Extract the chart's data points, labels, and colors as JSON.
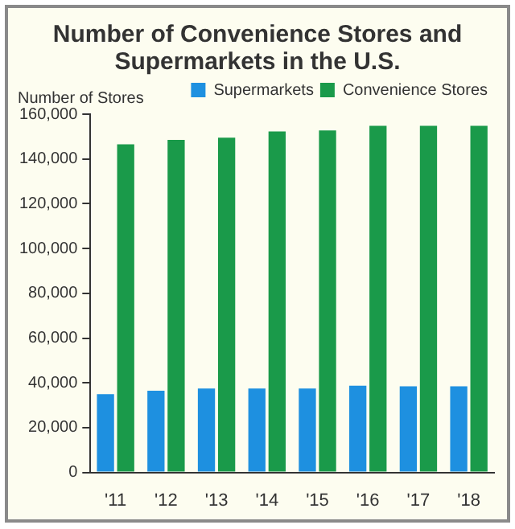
{
  "chart_data": {
    "type": "bar",
    "title": "Number of Convenience Stores and Supermarkets in the U.S.",
    "ylabel": "Number of Stores",
    "categories": [
      "'11",
      "'12",
      "'13",
      "'14",
      "'15",
      "'16",
      "'17",
      "'18"
    ],
    "series": [
      {
        "name": "Supermarkets",
        "color": "#1e90e0",
        "values": [
          35000,
          36500,
          37500,
          37500,
          37500,
          38700,
          38500,
          38500
        ]
      },
      {
        "name": "Convenience Stores",
        "color": "#1a9a4a",
        "values": [
          146500,
          148500,
          149500,
          152300,
          152700,
          154800,
          154800,
          154800
        ]
      }
    ],
    "ylim": [
      0,
      160000
    ],
    "yticks": [
      0,
      {
        "value": 20000,
        "label": "20,000"
      },
      {
        "value": 40000,
        "label": "40,000"
      },
      {
        "value": 60000,
        "label": "60,000"
      },
      {
        "value": 80000,
        "label": "80,000"
      },
      {
        "value": 100000,
        "label": "100,000"
      },
      {
        "value": 120000,
        "label": "120,000"
      },
      {
        "value": 140000,
        "label": "140,000"
      },
      {
        "value": 160000,
        "label": "160,000"
      }
    ],
    "grid": false,
    "legend": "top right"
  }
}
